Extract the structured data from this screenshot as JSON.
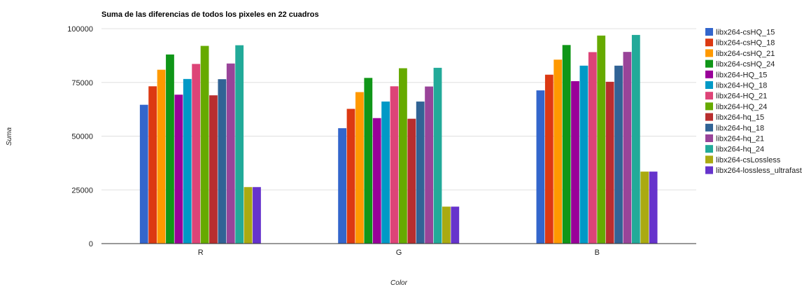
{
  "chart_data": {
    "type": "bar",
    "title": "Suma de las diferencias de todos los pixeles en 22 cuadros",
    "xlabel": "Color",
    "ylabel": "Suma",
    "categories": [
      "R",
      "G",
      "B"
    ],
    "ylim": [
      0,
      100000
    ],
    "yticks": [
      0,
      25000,
      50000,
      75000,
      100000
    ],
    "ytick_labels": [
      "0",
      "25000",
      "50000",
      "75000",
      "100000"
    ],
    "grid": true,
    "legend_position": "right",
    "series": [
      {
        "name": "libx264-csHQ_15",
        "color": "#3366cc",
        "values": [
          64600,
          53700,
          71300
        ]
      },
      {
        "name": "libx264-csHQ_18",
        "color": "#dc3912",
        "values": [
          73200,
          62700,
          78600
        ]
      },
      {
        "name": "libx264-csHQ_21",
        "color": "#ff9900",
        "values": [
          80900,
          70500,
          85600
        ]
      },
      {
        "name": "libx264-csHQ_24",
        "color": "#109618",
        "values": [
          88000,
          77100,
          92400
        ]
      },
      {
        "name": "libx264-HQ_15",
        "color": "#990099",
        "values": [
          69300,
          58400,
          75600
        ]
      },
      {
        "name": "libx264-HQ_18",
        "color": "#0099c6",
        "values": [
          76600,
          66100,
          82800
        ]
      },
      {
        "name": "libx264-HQ_21",
        "color": "#dd4477",
        "values": [
          83600,
          73200,
          89100
        ]
      },
      {
        "name": "libx264-HQ_24",
        "color": "#66aa00",
        "values": [
          92000,
          81600,
          96800
        ]
      },
      {
        "name": "libx264-hq_15",
        "color": "#b82e2e",
        "values": [
          69000,
          58100,
          75300
        ]
      },
      {
        "name": "libx264-hq_18",
        "color": "#316395",
        "values": [
          76500,
          66100,
          82800
        ]
      },
      {
        "name": "libx264-hq_21",
        "color": "#994499",
        "values": [
          83800,
          73100,
          89200
        ]
      },
      {
        "name": "libx264-hq_24",
        "color": "#22aa99",
        "values": [
          92300,
          81800,
          97100
        ]
      },
      {
        "name": "libx264-csLossless",
        "color": "#aaaa11",
        "values": [
          26300,
          17200,
          33500
        ]
      },
      {
        "name": "libx264-lossless_ultrafast",
        "color": "#6633cc",
        "values": [
          26300,
          17200,
          33500
        ]
      }
    ]
  }
}
